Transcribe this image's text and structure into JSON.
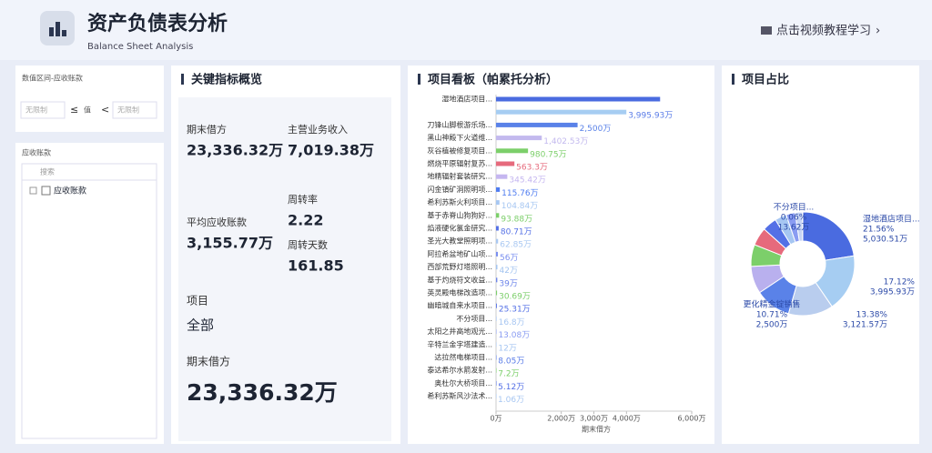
{
  "header": {
    "title": "资产负债表分析",
    "subtitle": "Balance Sheet Analysis",
    "tutorial": "点击视频教程学习"
  },
  "filter": {
    "title": "数值区间-应收账款",
    "min_placeholder": "无限制",
    "op1": "≤",
    "value": "值",
    "op2": "<",
    "max_placeholder": "无限制"
  },
  "tree": {
    "title": "应收账款",
    "search": "搜索",
    "node": "应收账款"
  },
  "kpi": {
    "title": "关键指标概览",
    "items": [
      {
        "label": "期末借方",
        "value": "23,336.32万"
      },
      {
        "label": "主营业务收入",
        "value": "7,019.38万"
      },
      {
        "label": "周转率",
        "value": "2.22"
      },
      {
        "label": "平均应收账款",
        "value": "3,155.77万"
      },
      {
        "label": "周转天数",
        "value": "161.85"
      }
    ],
    "project_label": "项目",
    "project_value": "全部",
    "total_label": "期末借方",
    "total_value": "23,336.32万"
  },
  "pareto": {
    "title": "项目看板（帕累托分析）",
    "categories": [
      "湿地酒店项目...",
      null,
      "刀锋山脚根游乐场...",
      "黑山神殿下火道维...",
      "灰谷植被修复项目...",
      "燃烧平原辐射复苏...",
      "地精辐射套装研究...",
      "闪金镇矿洞照明项...",
      "希利苏斯火利项目...",
      "基于赤脊山狗狗好...",
      "焰液硬化氯金研究...",
      "圣光大教堂照明项...",
      "阿拉希盆地矿山项...",
      "西部荒野灯塔照明...",
      "基于灼烧符文收益...",
      "英灵殿电梯改造项...",
      "幽暗城自来水项目...",
      "不分项目...",
      "太阳之井高地观光...",
      "辛特兰金字塔建造...",
      "达拉然电梯项目...",
      "泰达希尔水箭发射...",
      "奥杜尔大桥项目...",
      "希利苏斯风沙法术..."
    ],
    "values": [
      5030.51,
      3995.93,
      2500,
      1402.53,
      980.75,
      563.3,
      345.42,
      115.76,
      104.84,
      93.88,
      80.71,
      62.85,
      56,
      42,
      39,
      30.69,
      25.31,
      16.8,
      13.08,
      12,
      8.05,
      7.2,
      5.12,
      1.06
    ],
    "value_labels": [
      null,
      "3,995.93万",
      "2,500万",
      "1,402.53万",
      "980.75万",
      "563.3万",
      "345.42万",
      "115.76万",
      "104.84万",
      "93.88万",
      "80.71万",
      "62.85万",
      "56万",
      "42万",
      "39万",
      "30.69万",
      "25.31万",
      "16.8万",
      "13.08万",
      "12万",
      "8.05万",
      "7.2万",
      "5.12万",
      "1.06万"
    ],
    "colors": [
      "#4a6be0",
      "#a6cdf2",
      "#5a82e8",
      "#c3b9ee",
      "#7ccf6a",
      "#e66a7c",
      "#c5b6f0",
      "#4f7cf0",
      "#a7c7f2",
      "#7ccf6a",
      "#5470e6",
      "#a9c8f2",
      "#7a8ff0",
      "#a3c4f0",
      "#6d85ea",
      "#7ccf6a",
      "#5470e6",
      "#a6c6f2",
      "#8a9cf2",
      "#a6c6f2",
      "#5b7de8",
      "#7ccf6a",
      "#5470e6",
      "#a6c6f2"
    ],
    "xlim": [
      0,
      6000
    ],
    "xticks": [
      {
        "value": 0,
        "label": "0万"
      },
      {
        "value": 2000,
        "label": "2,000万"
      },
      {
        "value": 3000,
        "label": "3,000万"
      },
      {
        "value": 4000,
        "label": "4,000万"
      },
      {
        "value": 6000,
        "label": "6,000万"
      }
    ],
    "xlabel": "期末借方"
  },
  "pie": {
    "title": "项目占比",
    "names": [
      "湿地酒店项目...",
      null,
      null,
      "更化精金锭销售",
      null,
      null,
      null,
      null,
      null,
      null,
      null,
      "不分项目..."
    ],
    "values": [
      21.56,
      17.12,
      13.38,
      10.71,
      8.2,
      6.5,
      5.4,
      4.3,
      3.5,
      2.7,
      2.2,
      0.06
    ],
    "value_labels": [
      "21.56%",
      "17.12%",
      "13.38%",
      "10.71%",
      null,
      null,
      null,
      null,
      null,
      null,
      null,
      "0.06%"
    ],
    "amount_labels": [
      "5,030.51万",
      "3,995.93万",
      "3,121.57万",
      "2,500万",
      null,
      null,
      null,
      null,
      null,
      null,
      null,
      "13.62万"
    ],
    "colors": [
      "#4a6be0",
      "#a6cdf2",
      "#b9cdee",
      "#5a82e8",
      "#b9b0ee",
      "#7ccf6a",
      "#e66a7c",
      "#5470e6",
      "#a6c6f2",
      "#8a9cf2",
      "#c6d4f4",
      "#6d85ea"
    ]
  }
}
